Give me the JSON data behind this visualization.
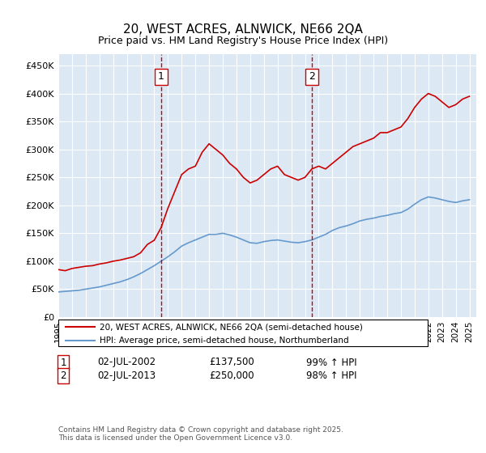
{
  "title": "20, WEST ACRES, ALNWICK, NE66 2QA",
  "subtitle": "Price paid vs. HM Land Registry's House Price Index (HPI)",
  "xlabel": "",
  "ylabel": "",
  "xlim": [
    1995,
    2025.5
  ],
  "ylim": [
    0,
    470000
  ],
  "yticks": [
    0,
    50000,
    100000,
    150000,
    200000,
    250000,
    300000,
    350000,
    400000,
    450000
  ],
  "ytick_labels": [
    "£0",
    "£50K",
    "£100K",
    "£150K",
    "£200K",
    "£250K",
    "£300K",
    "£350K",
    "£400K",
    "£450K"
  ],
  "xticks": [
    1995,
    1996,
    1997,
    1998,
    1999,
    2000,
    2001,
    2002,
    2003,
    2004,
    2005,
    2006,
    2007,
    2008,
    2009,
    2010,
    2011,
    2012,
    2013,
    2014,
    2015,
    2016,
    2017,
    2018,
    2019,
    2020,
    2021,
    2022,
    2023,
    2024,
    2025
  ],
  "bg_color": "#dce9f5",
  "grid_color": "#ffffff",
  "vline1_x": 2002.5,
  "vline2_x": 2013.5,
  "vline_color": "#cc0000",
  "marker1_label": "1",
  "marker2_label": "2",
  "marker1_y": 430000,
  "marker2_y": 430000,
  "legend_line1": "20, WEST ACRES, ALNWICK, NE66 2QA (semi-detached house)",
  "legend_line2": "HPI: Average price, semi-detached house, Northumberland",
  "red_line_color": "#cc0000",
  "blue_line_color": "#6699cc",
  "annotation1_date": "02-JUL-2002",
  "annotation1_price": "£137,500",
  "annotation1_hpi": "99% ↑ HPI",
  "annotation2_date": "02-JUL-2013",
  "annotation2_price": "£250,000",
  "annotation2_hpi": "98% ↑ HPI",
  "footer": "Contains HM Land Registry data © Crown copyright and database right 2025.\nThis data is licensed under the Open Government Licence v3.0.",
  "red_x": [
    1995.0,
    1995.5,
    1996.0,
    1996.5,
    1997.0,
    1997.5,
    1998.0,
    1998.5,
    1999.0,
    1999.5,
    2000.0,
    2000.5,
    2001.0,
    2001.5,
    2002.0,
    2002.5,
    2003.0,
    2003.5,
    2004.0,
    2004.5,
    2005.0,
    2005.5,
    2006.0,
    2006.5,
    2007.0,
    2007.5,
    2008.0,
    2008.5,
    2009.0,
    2009.5,
    2010.0,
    2010.5,
    2011.0,
    2011.5,
    2012.0,
    2012.5,
    2013.0,
    2013.5,
    2014.0,
    2014.5,
    2015.0,
    2015.5,
    2016.0,
    2016.5,
    2017.0,
    2017.5,
    2018.0,
    2018.5,
    2019.0,
    2019.5,
    2020.0,
    2020.5,
    2021.0,
    2021.5,
    2022.0,
    2022.5,
    2023.0,
    2023.5,
    2024.0,
    2024.5,
    2025.0
  ],
  "red_y": [
    85000,
    83000,
    87000,
    89000,
    91000,
    92000,
    95000,
    97000,
    100000,
    102000,
    105000,
    108000,
    115000,
    130000,
    137500,
    160000,
    195000,
    225000,
    255000,
    265000,
    270000,
    295000,
    310000,
    300000,
    290000,
    275000,
    265000,
    250000,
    240000,
    245000,
    255000,
    265000,
    270000,
    255000,
    250000,
    245000,
    250000,
    265000,
    270000,
    265000,
    275000,
    285000,
    295000,
    305000,
    310000,
    315000,
    320000,
    330000,
    330000,
    335000,
    340000,
    355000,
    375000,
    390000,
    400000,
    395000,
    385000,
    375000,
    380000,
    390000,
    395000
  ],
  "blue_x": [
    1995.0,
    1995.5,
    1996.0,
    1996.5,
    1997.0,
    1997.5,
    1998.0,
    1998.5,
    1999.0,
    1999.5,
    2000.0,
    2000.5,
    2001.0,
    2001.5,
    2002.0,
    2002.5,
    2003.0,
    2003.5,
    2004.0,
    2004.5,
    2005.0,
    2005.5,
    2006.0,
    2006.5,
    2007.0,
    2007.5,
    2008.0,
    2008.5,
    2009.0,
    2009.5,
    2010.0,
    2010.5,
    2011.0,
    2011.5,
    2012.0,
    2012.5,
    2013.0,
    2013.5,
    2014.0,
    2014.5,
    2015.0,
    2015.5,
    2016.0,
    2016.5,
    2017.0,
    2017.5,
    2018.0,
    2018.5,
    2019.0,
    2019.5,
    2020.0,
    2020.5,
    2021.0,
    2021.5,
    2022.0,
    2022.5,
    2023.0,
    2023.5,
    2024.0,
    2024.5,
    2025.0
  ],
  "blue_y": [
    45000,
    46000,
    47000,
    48000,
    50000,
    52000,
    54000,
    57000,
    60000,
    63000,
    67000,
    72000,
    78000,
    85000,
    92000,
    100000,
    108000,
    117000,
    127000,
    133000,
    138000,
    143000,
    148000,
    148000,
    150000,
    147000,
    143000,
    138000,
    133000,
    132000,
    135000,
    137000,
    138000,
    136000,
    134000,
    133000,
    135000,
    138000,
    143000,
    148000,
    155000,
    160000,
    163000,
    167000,
    172000,
    175000,
    177000,
    180000,
    182000,
    185000,
    187000,
    193000,
    202000,
    210000,
    215000,
    213000,
    210000,
    207000,
    205000,
    208000,
    210000
  ]
}
